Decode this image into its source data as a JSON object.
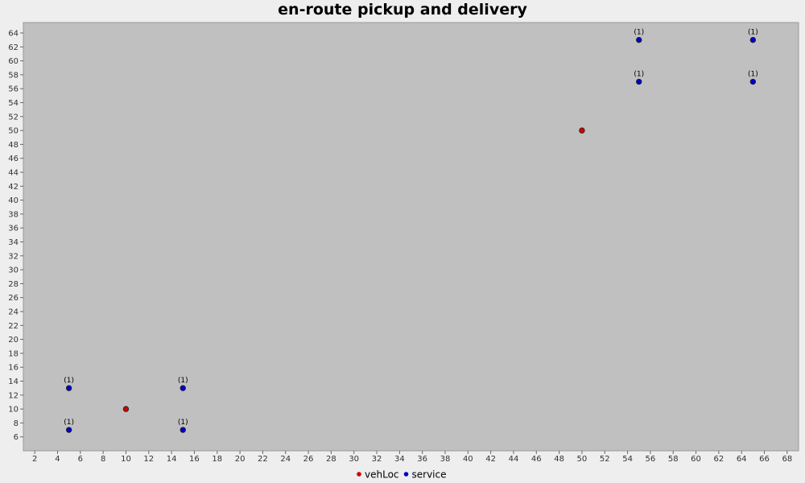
{
  "chart_data": {
    "type": "scatter",
    "title": "en-route pickup and delivery",
    "xlabel": "",
    "ylabel": "",
    "xlim": [
      1,
      69
    ],
    "ylim": [
      4,
      65.5
    ],
    "x_ticks": [
      2,
      4,
      6,
      8,
      10,
      12,
      14,
      16,
      18,
      20,
      22,
      24,
      26,
      28,
      30,
      32,
      34,
      36,
      38,
      40,
      42,
      44,
      46,
      48,
      50,
      52,
      54,
      56,
      58,
      60,
      62,
      64,
      66,
      68
    ],
    "y_ticks": [
      6,
      8,
      10,
      12,
      14,
      16,
      18,
      20,
      22,
      24,
      26,
      28,
      30,
      32,
      34,
      36,
      38,
      40,
      42,
      44,
      46,
      48,
      50,
      52,
      54,
      56,
      58,
      60,
      62,
      64
    ],
    "grid": false,
    "legend_position": "bottom-center",
    "background_color": "#c0c0c0",
    "series": [
      {
        "name": "vehLoc",
        "color": "#d00000",
        "points": [
          {
            "x": 10,
            "y": 10,
            "label": ""
          },
          {
            "x": 50,
            "y": 50,
            "label": ""
          }
        ]
      },
      {
        "name": "service",
        "color": "#0000cc",
        "points": [
          {
            "x": 5,
            "y": 7,
            "label": "(1)"
          },
          {
            "x": 5,
            "y": 13,
            "label": "(1)"
          },
          {
            "x": 15,
            "y": 7,
            "label": "(1)"
          },
          {
            "x": 15,
            "y": 13,
            "label": "(1)"
          },
          {
            "x": 55,
            "y": 57,
            "label": "(1)"
          },
          {
            "x": 55,
            "y": 63,
            "label": "(1)"
          },
          {
            "x": 65,
            "y": 57,
            "label": "(1)"
          },
          {
            "x": 65,
            "y": 63,
            "label": "(1)"
          }
        ]
      }
    ]
  }
}
